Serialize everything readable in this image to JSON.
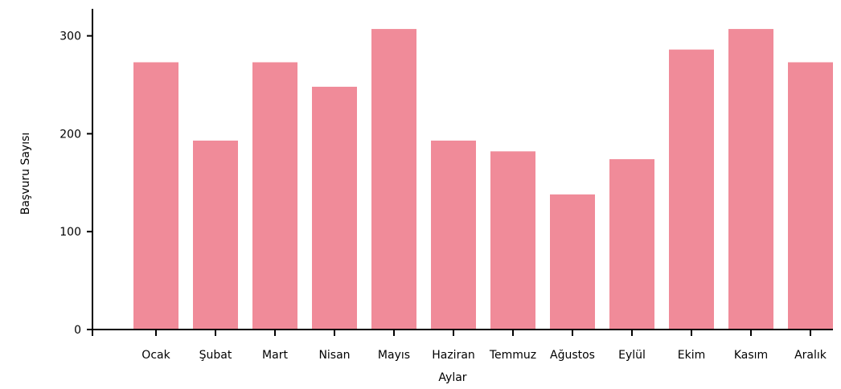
{
  "chart_data": {
    "type": "bar",
    "title": "",
    "xlabel": "Aylar",
    "ylabel": "Başvuru Sayısı",
    "categories": [
      "Ocak",
      "Şubat",
      "Mart",
      "Nisan",
      "Mayıs",
      "Haziran",
      "Temmuz",
      "Ağustos",
      "Eylül",
      "Ekim",
      "Kasım",
      "Aralık"
    ],
    "values": [
      273,
      193,
      273,
      248,
      307,
      193,
      182,
      138,
      174,
      286,
      307,
      273
    ],
    "ylim": [
      0,
      320
    ],
    "yticks": [
      0,
      100,
      200,
      300
    ],
    "grid": false,
    "legend": "none",
    "bar_color": "#f08b99",
    "axis_color": "#000000"
  }
}
